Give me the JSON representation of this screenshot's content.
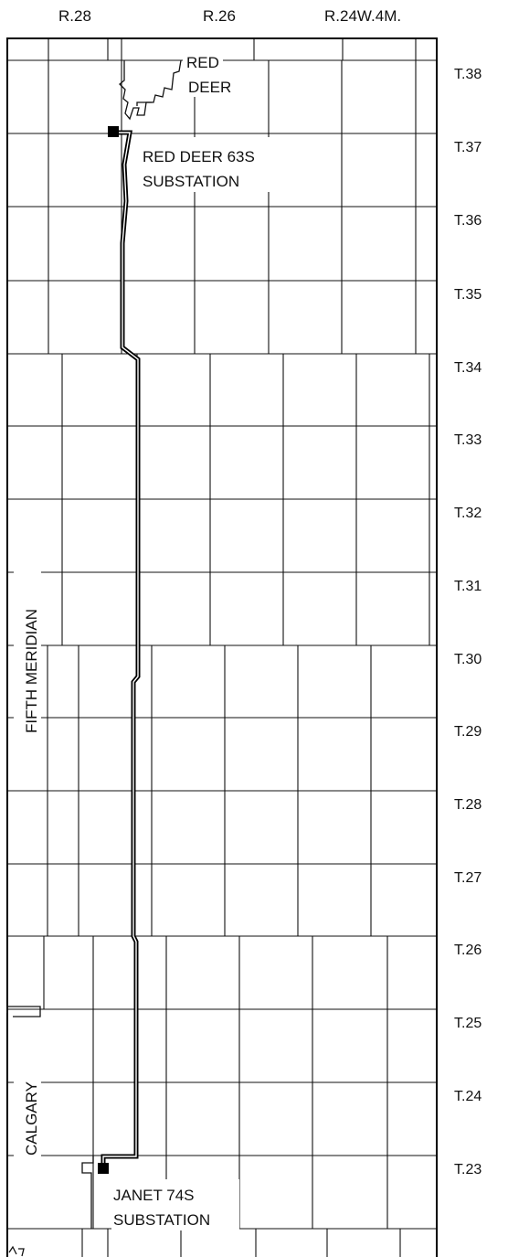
{
  "ranges": [
    "R.28",
    "R.26",
    "R.24W.4M."
  ],
  "townships": [
    "T.38",
    "T.37",
    "T.36",
    "T.35",
    "T.34",
    "T.33",
    "T.32",
    "T.31",
    "T.30",
    "T.29",
    "T.28",
    "T.27",
    "T.26",
    "T.25",
    "T.24",
    "T.23"
  ],
  "places": {
    "red_deer_line1": "RED",
    "red_deer_line2": "DEER",
    "calgary": "CALGARY"
  },
  "meridian": "FIFTH  MERIDIAN",
  "substations": {
    "north_line1": "RED DEER 63S",
    "north_line2": "SUBSTATION",
    "south_line1": "JANET 74S",
    "south_line2": "SUBSTATION"
  },
  "colors": {
    "ink": "#000000",
    "paper": "#ffffff"
  }
}
